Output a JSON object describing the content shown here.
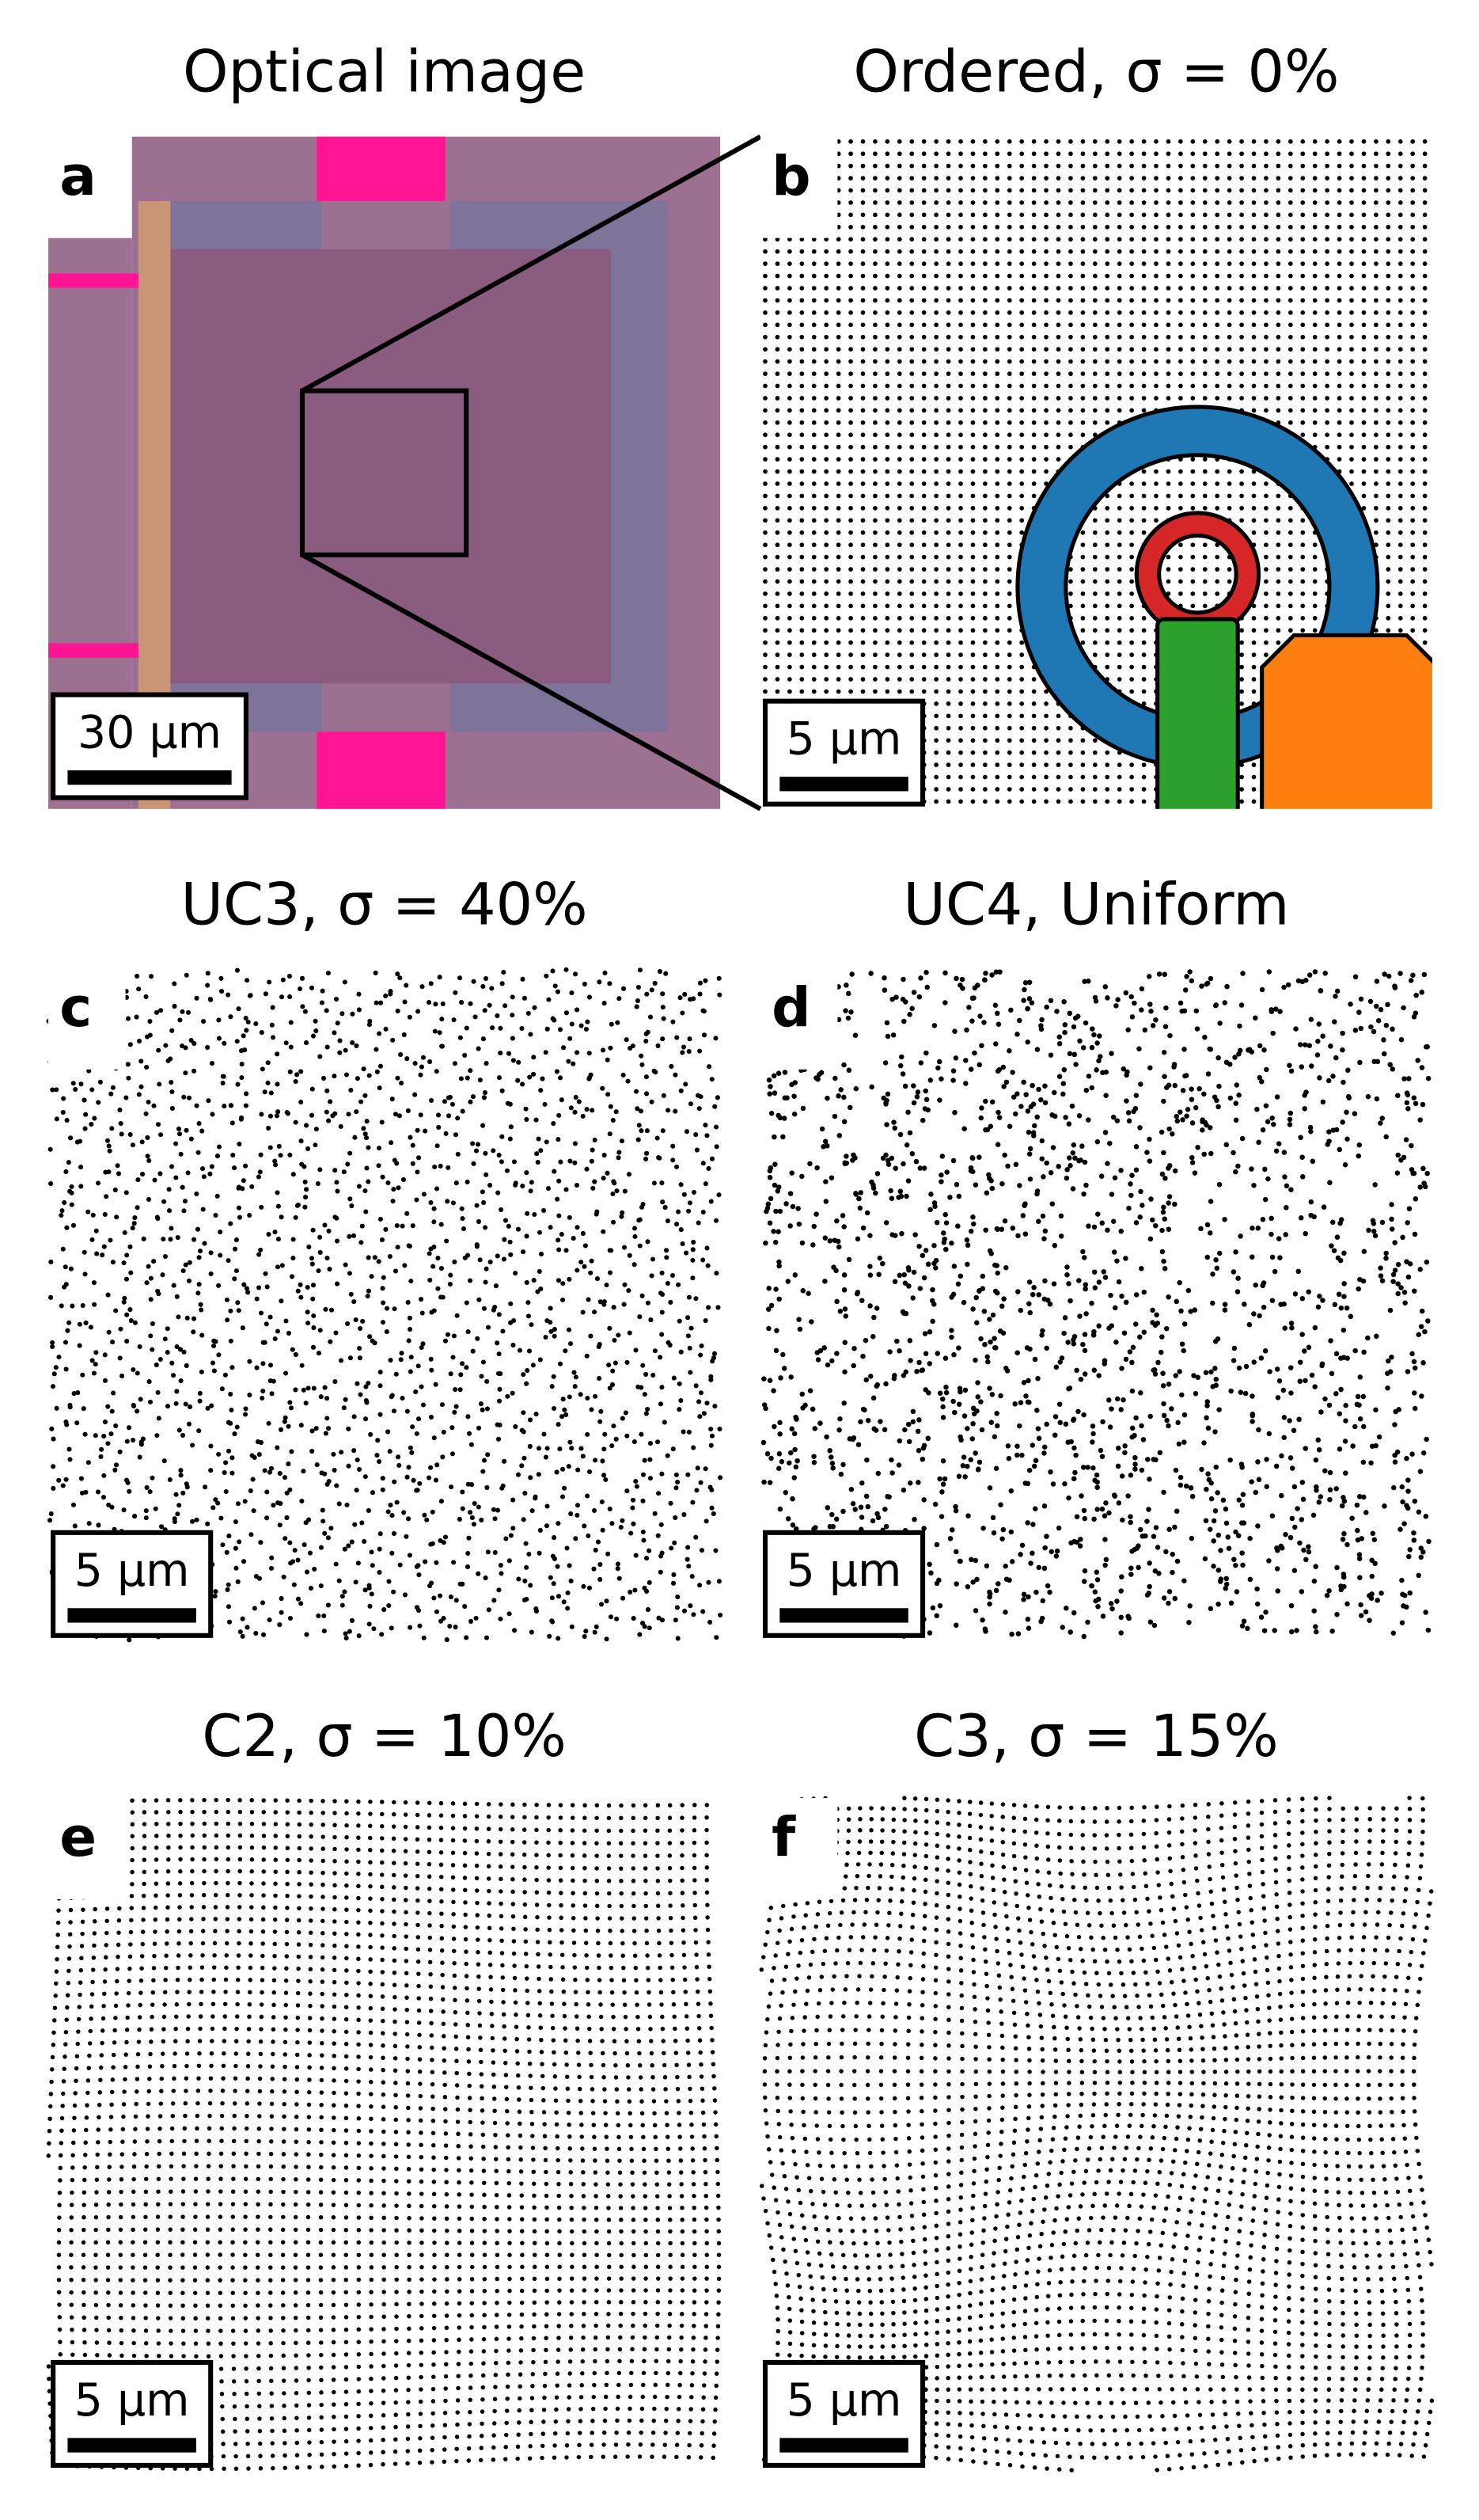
{
  "panels": [
    {
      "letter": "a",
      "title": "Optical image",
      "scale_bar": "30 μm"
    },
    {
      "letter": "b",
      "title": "Ordered, σ = 0%",
      "scale_bar": "5 μm"
    },
    {
      "letter": "c",
      "title": "UC3, σ = 40%",
      "scale_bar": "5 μm"
    },
    {
      "letter": "d",
      "title": "UC4, Uniform",
      "scale_bar": "5 μm"
    },
    {
      "letter": "e",
      "title": "C2, σ = 10%",
      "scale_bar": "5 μm"
    },
    {
      "letter": "f",
      "title": "C3, σ = 15%",
      "scale_bar": "5 μm"
    }
  ]
}
